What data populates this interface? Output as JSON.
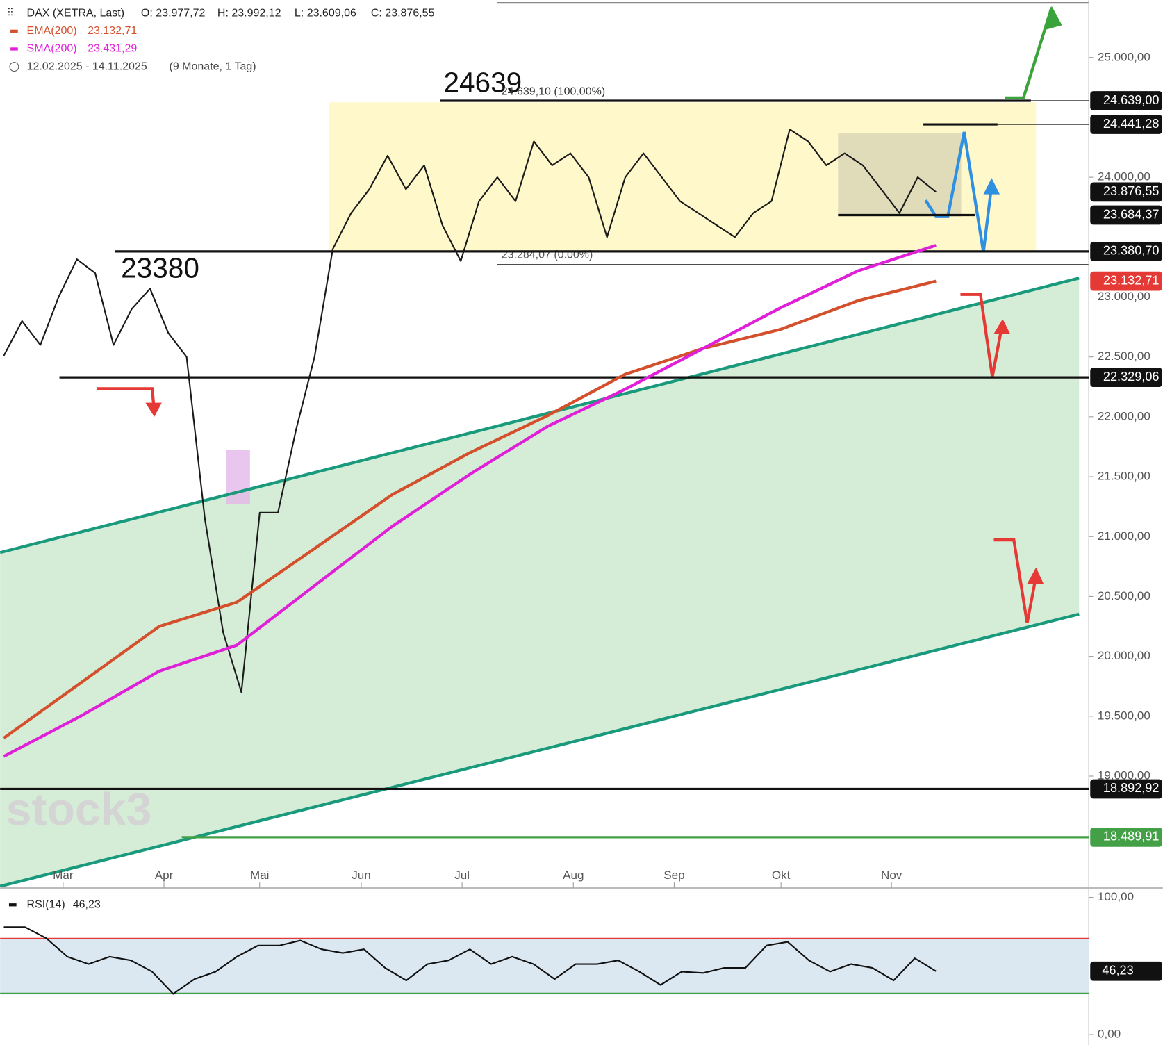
{
  "header": {
    "open": "O: 23.977,72",
    "high": "H: 23.992,12",
    "low": "L: 23.609,06",
    "close": "C: 23.876,55",
    "range": "12.02.2025 - 14.11.2025",
    "span": "(9 Monate, 1 Tag)",
    "watermark": "stock3"
  },
  "chart_data": [
    {
      "type": "line",
      "title": "DAX (XETRA, Last)",
      "xticks": [
        "Mär",
        "Apr",
        "Mai",
        "Jun",
        "Jul",
        "Aug",
        "Sep",
        "Okt",
        "Nov"
      ],
      "ylim": [
        18080,
        25480
      ],
      "yticks": [
        {
          "value": 19000,
          "label": "19.000,00"
        },
        {
          "value": 19500,
          "label": "19.500,00"
        },
        {
          "value": 20000,
          "label": "20.000,00"
        },
        {
          "value": 20500,
          "label": "20.500,00"
        },
        {
          "value": 21000,
          "label": "21.000,00"
        },
        {
          "value": 21500,
          "label": "21.500,00"
        },
        {
          "value": 22000,
          "label": "22.000,00"
        },
        {
          "value": 22500,
          "label": "22.500,00"
        },
        {
          "value": 23000,
          "label": "23.000,00"
        },
        {
          "value": 24000,
          "label": "24.000,00"
        },
        {
          "value": 25000,
          "label": "25.000,00"
        }
      ],
      "series": [
        {
          "color": "#1a1a1a",
          "values": [
            22510,
            22800,
            22600,
            23000,
            23315,
            23200,
            22600,
            22900,
            23070,
            22700,
            22500,
            21150,
            20200,
            19700,
            21200,
            21200,
            21900,
            22500,
            23400,
            23700,
            23900,
            24180,
            23900,
            24100,
            23600,
            23300,
            23800,
            24000,
            23800,
            24300,
            24100,
            24200,
            24000,
            23500,
            24000,
            24200,
            24000,
            23800,
            23700,
            23600,
            23500,
            23700,
            23800,
            24400,
            24300,
            24100,
            24200,
            24100,
            23900,
            23700,
            24000,
            23876.55
          ]
        },
        {
          "name": "EMA(200)",
          "legend_value": "23.132,71",
          "color": "#d4502c",
          "values": [
            19318,
            19783,
            20250,
            20452,
            20900,
            21350,
            21700,
            22010,
            22355,
            22570,
            22730,
            22970,
            23132.71
          ]
        },
        {
          "name": "SMA(200)",
          "legend_value": "23.431,29",
          "color": "#e020d8",
          "values": [
            19164,
            19505,
            19876,
            20093,
            20590,
            21085,
            21520,
            21920,
            22230,
            22570,
            22910,
            23220,
            23431.29
          ]
        }
      ],
      "levels": [
        {
          "value": 24639,
          "label": "24.639,00",
          "color": "#111111"
        },
        {
          "value": 24441.28,
          "label": "24.441,28",
          "color": "#111111"
        },
        {
          "value": 23876.55,
          "label": "23.876,55",
          "color": "#111111"
        },
        {
          "value": 23684.37,
          "label": "23.684,37",
          "color": "#111111"
        },
        {
          "value": 23380.7,
          "label": "23.380,70",
          "color": "#111111"
        },
        {
          "value": 23132.71,
          "label": "23.132,71",
          "color": "#e53935"
        },
        {
          "value": 22329.06,
          "label": "22.329,06",
          "color": "#111111"
        },
        {
          "value": 18892.92,
          "label": "18.892,92",
          "color": "#111111"
        },
        {
          "value": 18489.91,
          "label": "18.489,91",
          "color": "#43a047"
        }
      ],
      "annotations": [
        "24639",
        "23380",
        "24.639,10 (100.00%)",
        "23.284,07 (0.00%)"
      ]
    },
    {
      "type": "line",
      "title": "RSI(14)",
      "legend_value": "46,23",
      "ylim": [
        0,
        100
      ],
      "yticks": [
        {
          "value": 0,
          "label": "0,00"
        },
        {
          "value": 100,
          "label": "100,00"
        }
      ],
      "levels": [
        {
          "value": 70,
          "color": "#e53935"
        },
        {
          "value": 30,
          "color": "#43a047"
        }
      ],
      "series": [
        {
          "color": "#111111",
          "values": [
            78.4,
            78.4,
            70.3,
            56.8,
            51.4,
            56.8,
            54.1,
            45.9,
            29.7,
            40.5,
            45.9,
            56.8,
            64.9,
            64.9,
            68.6,
            62.2,
            59.5,
            62.2,
            48.6,
            39.5,
            51.4,
            54.1,
            62.2,
            51.4,
            56.8,
            51.4,
            40.5,
            51.4,
            51.4,
            54.1,
            45.9,
            36.2,
            45.9,
            44.9,
            48.6,
            48.6,
            64.9,
            67.6,
            54.1,
            45.9,
            51.4,
            48.6,
            39.5,
            55.7,
            46.23
          ]
        }
      ]
    }
  ]
}
